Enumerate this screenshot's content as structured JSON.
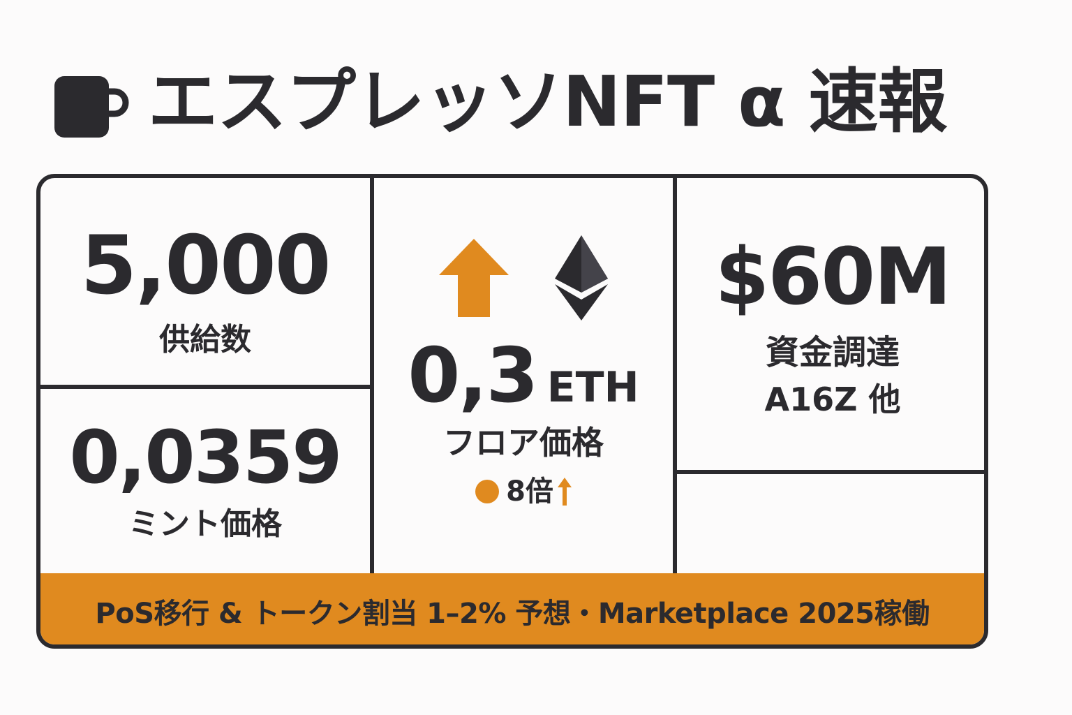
{
  "header": {
    "icon": "coffee-cup-icon",
    "title": "エスプレッソNFT α 速報"
  },
  "stats": {
    "supply": {
      "value": "5,000",
      "label": "供給数"
    },
    "mint": {
      "value": "0,0359",
      "label": "ミント価格"
    },
    "floor": {
      "value": "0,3",
      "unit": "ETH",
      "label": "フロア価格",
      "change": "8倍",
      "icons": [
        "arrow-up-icon",
        "ethereum-icon",
        "dot-icon",
        "small-arrow-up-icon"
      ]
    },
    "funding": {
      "value": "$60M",
      "label": "資金調達",
      "investors": "A16Z 他"
    }
  },
  "banner": {
    "text": "PoS移行 & トークン割当 1–2% 予想・Marketplace 2025稼働"
  },
  "colors": {
    "accent": "#e08a1f",
    "ink": "#2b2a2e",
    "background": "#fcfbfb"
  }
}
